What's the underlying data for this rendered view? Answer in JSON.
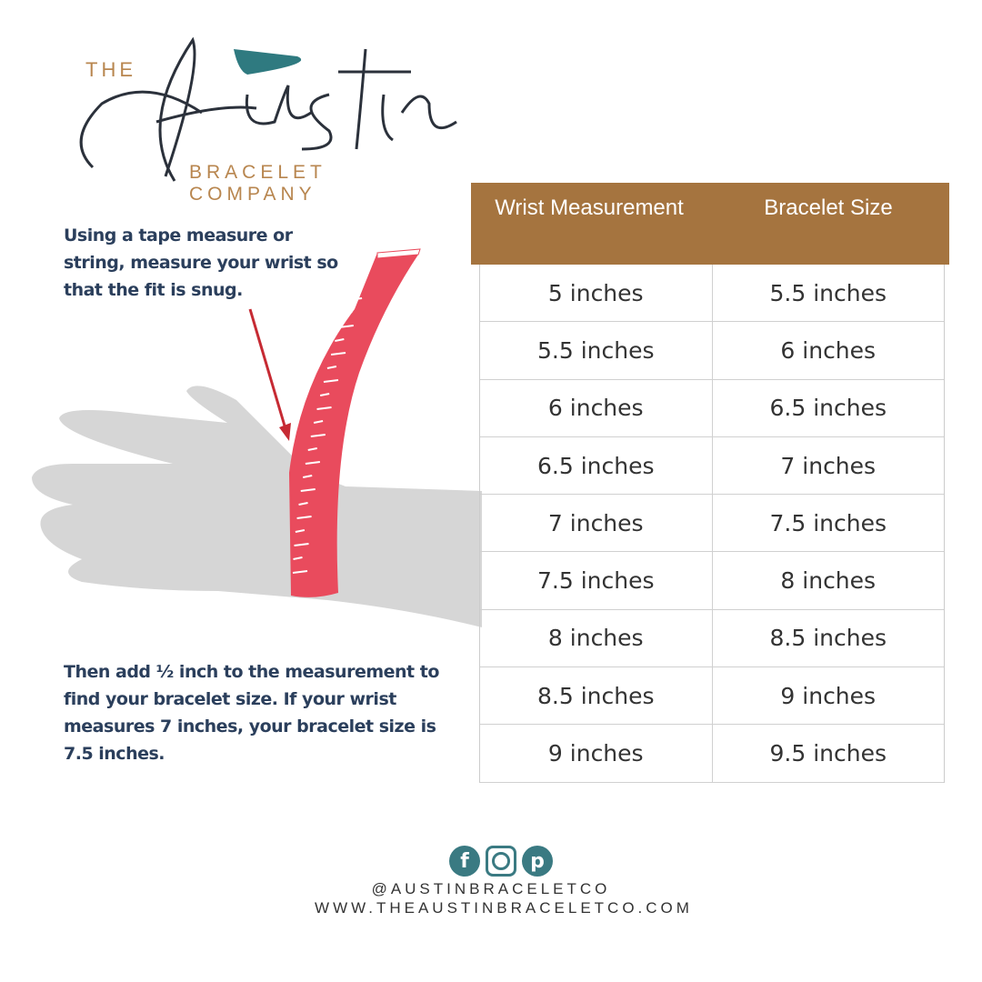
{
  "logo": {
    "the": "THE",
    "script": "Austin",
    "sub": "BRACELET COMPANY",
    "leaf_color": "#2f7a80",
    "script_color": "#2b313b",
    "accent": "#b8864f"
  },
  "instructions": {
    "step1": "Using a tape measure or string, measure your wrist so that the fit is snug.",
    "step2": "Then add ½ inch to the measurement to find your bracelet size. If your wrist measures 7 inches, your bracelet size is 7.5 inches."
  },
  "table": {
    "header_color": "#a5743f",
    "headers": [
      "Wrist Measurement",
      "Bracelet Size"
    ],
    "rows": [
      [
        "5 inches",
        "5.5 inches"
      ],
      [
        "5.5 inches",
        "6 inches"
      ],
      [
        "6 inches",
        "6.5 inches"
      ],
      [
        "6.5 inches",
        "7 inches"
      ],
      [
        "7 inches",
        "7.5 inches"
      ],
      [
        "7.5 inches",
        "8 inches"
      ],
      [
        "8 inches",
        "8.5 inches"
      ],
      [
        "8.5 inches",
        "9 inches"
      ],
      [
        "9 inches",
        "9.5 inches"
      ]
    ]
  },
  "footer": {
    "icons": [
      "facebook-icon",
      "instagram-icon",
      "pinterest-icon"
    ],
    "handle": "@AUSTINBRACELETCO",
    "website": "WWW.THEAUSTINBRACELETCO.COM"
  }
}
